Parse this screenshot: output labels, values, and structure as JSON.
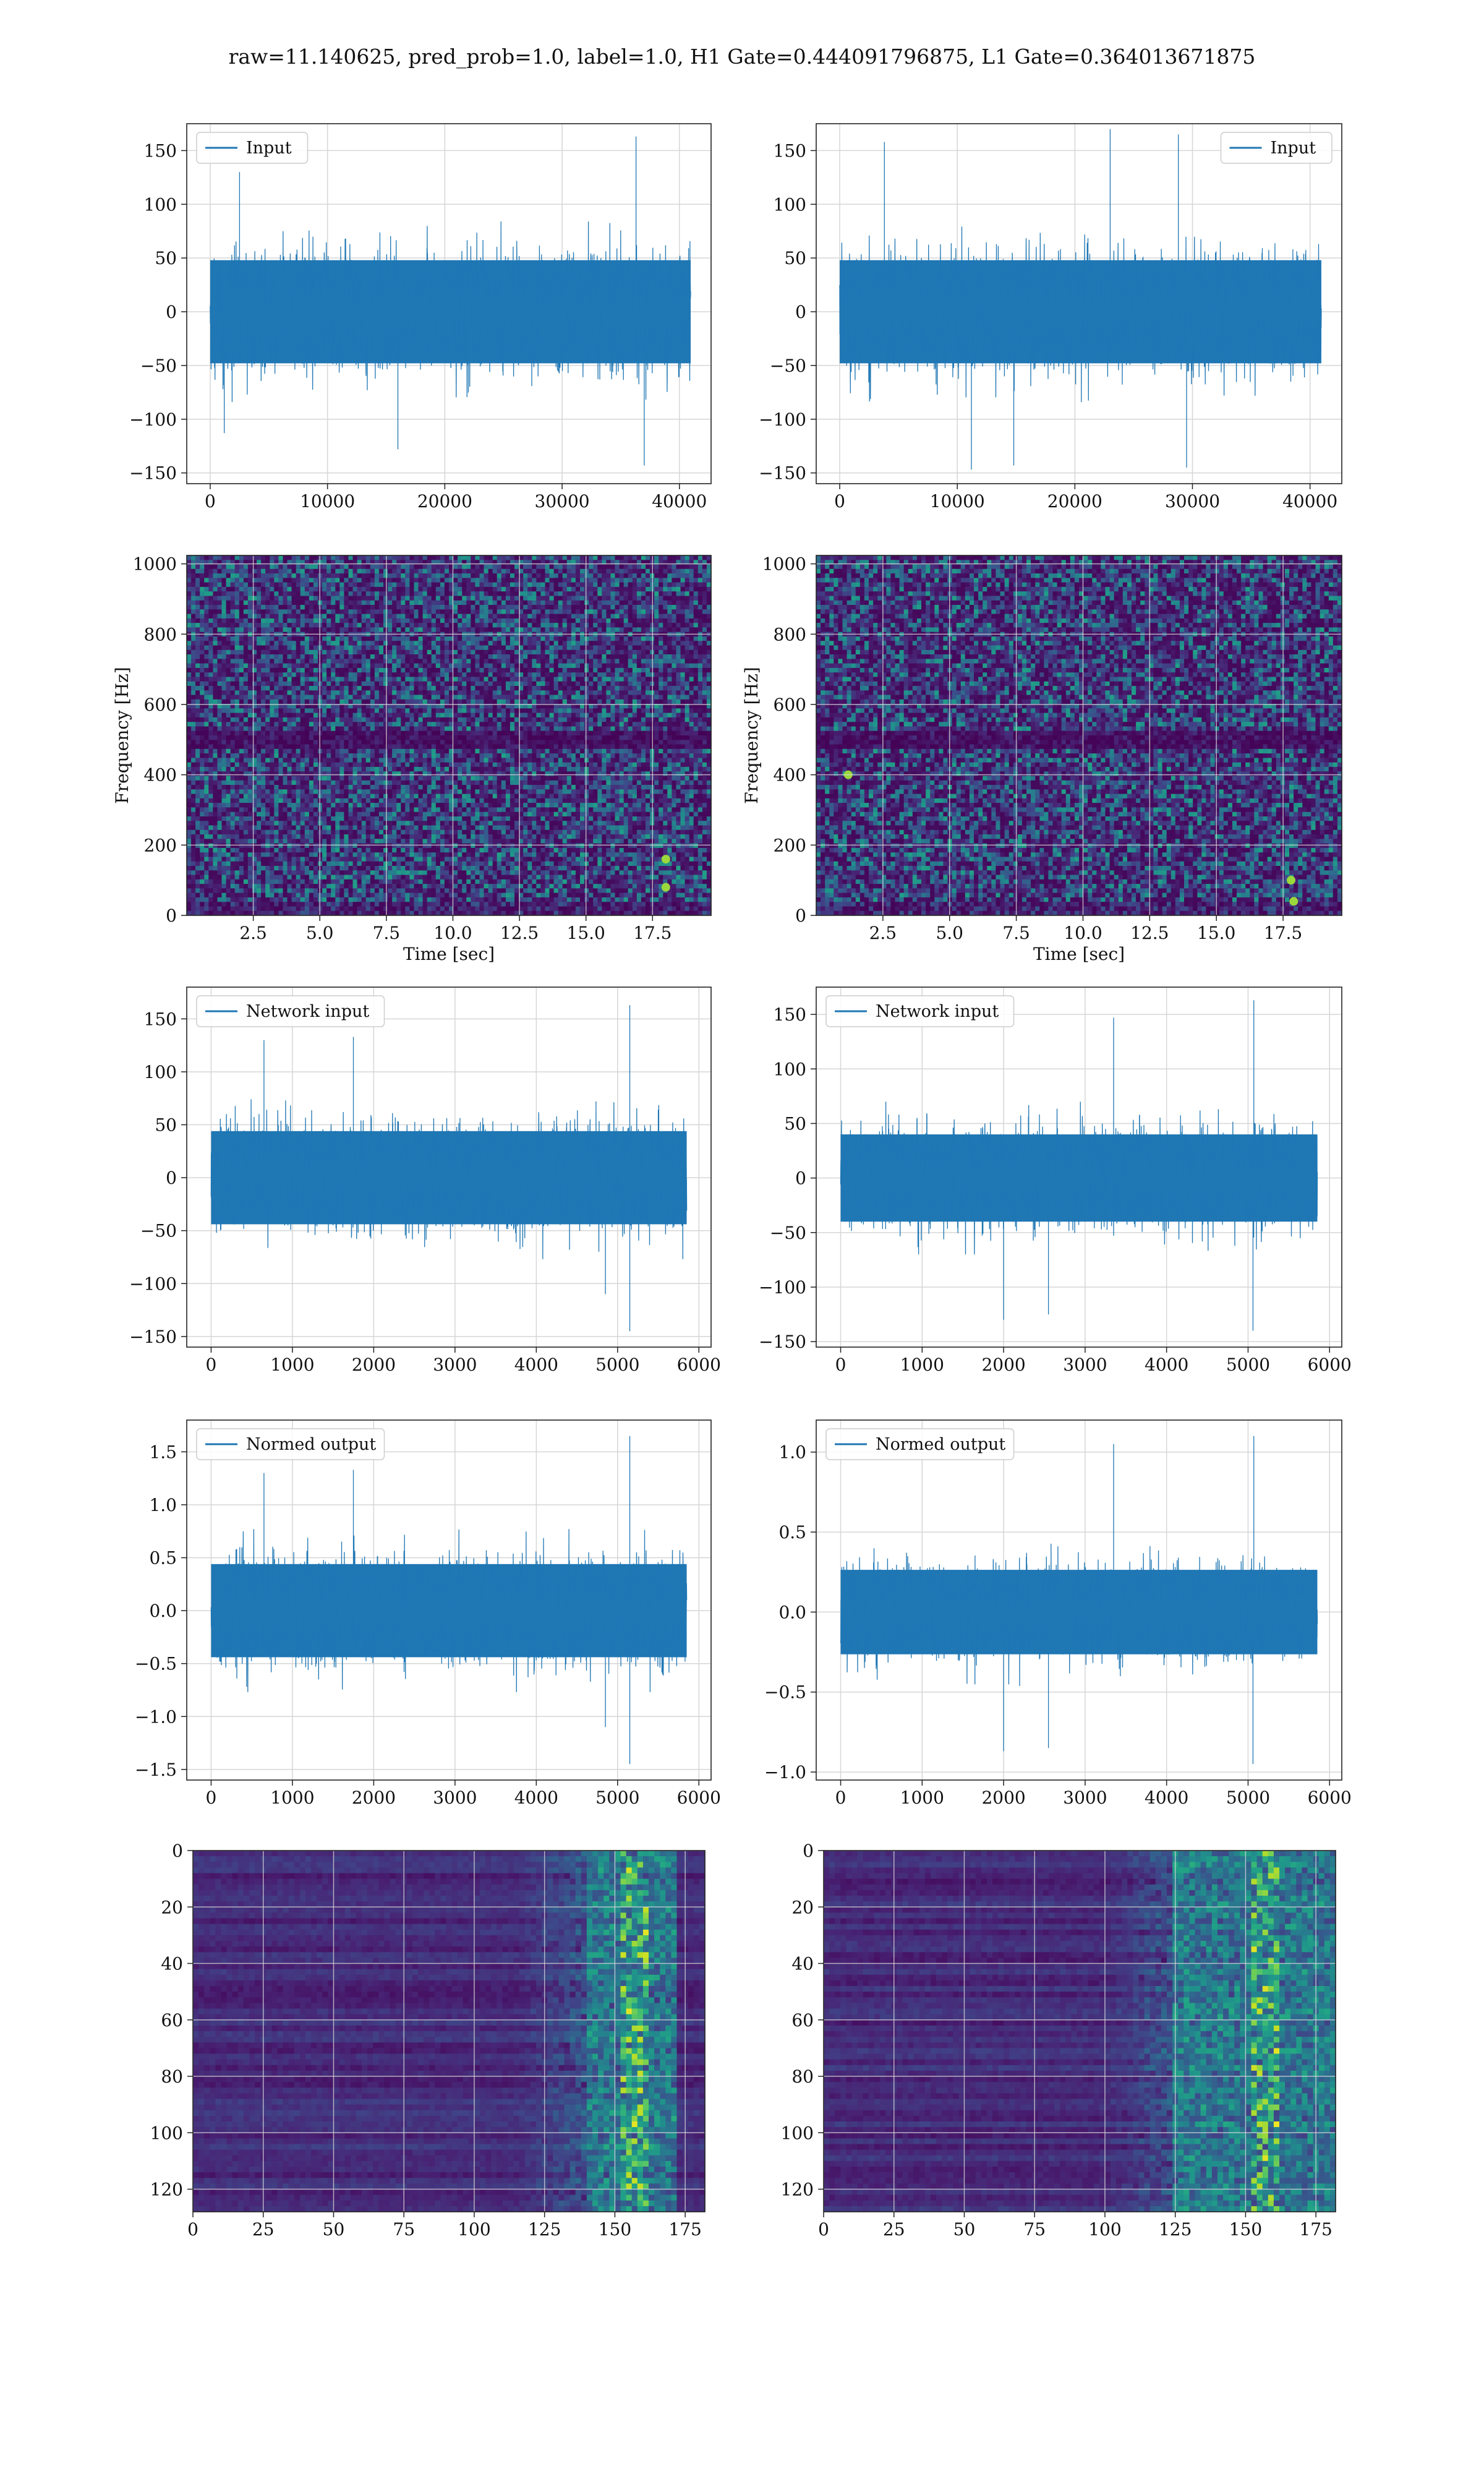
{
  "figure": {
    "title": "raw=11.140625, pred_prob=1.0, label=1.0, H1 Gate=0.444091796875, L1 Gate=0.364013671875"
  },
  "chart_data": [
    {
      "id": "input-h1",
      "type": "line",
      "legend": "Input",
      "legend_loc": "upper-left",
      "grid": true,
      "xlim": [
        -2000,
        42700
      ],
      "ylim": [
        -160,
        175
      ],
      "xticks": [
        0,
        10000,
        20000,
        30000,
        40000
      ],
      "yticks": [
        -150,
        -100,
        -50,
        0,
        50,
        100,
        150
      ],
      "x_range": [
        0,
        40960
      ],
      "noise_amplitude": 60,
      "color": "#1f77b4",
      "peaks": [
        {
          "x": 2500,
          "y": 130
        },
        {
          "x": 36300,
          "y": 163
        },
        {
          "x": 37000,
          "y": -143
        },
        {
          "x": 16000,
          "y": -128
        },
        {
          "x": 1200,
          "y": -113
        }
      ]
    },
    {
      "id": "input-l1",
      "type": "line",
      "legend": "Input",
      "legend_loc": "upper-right",
      "grid": true,
      "xlim": [
        -2000,
        42700
      ],
      "ylim": [
        -160,
        175
      ],
      "xticks": [
        0,
        10000,
        20000,
        30000,
        40000
      ],
      "yticks": [
        -150,
        -100,
        -50,
        0,
        50,
        100,
        150
      ],
      "x_range": [
        0,
        40960
      ],
      "noise_amplitude": 60,
      "color": "#1f77b4",
      "peaks": [
        {
          "x": 23000,
          "y": 170
        },
        {
          "x": 28800,
          "y": 165
        },
        {
          "x": 3800,
          "y": 158
        },
        {
          "x": 11200,
          "y": -147
        },
        {
          "x": 14800,
          "y": -143
        },
        {
          "x": 29500,
          "y": -145
        }
      ]
    },
    {
      "id": "spectrogram-h1",
      "type": "heatmap",
      "colormap": "viridis",
      "grid": true,
      "xlabel": "Time [sec]",
      "ylabel": "Frequency [Hz]",
      "xlim": [
        0,
        19.7
      ],
      "ylim": [
        0,
        1024
      ],
      "xticks": [
        2.5,
        5.0,
        7.5,
        10.0,
        12.5,
        15.0,
        17.5
      ],
      "xtick_labels": [
        "2.5",
        "5.0",
        "7.5",
        "10.0",
        "12.5",
        "15.0",
        "17.5"
      ],
      "yticks": [
        0,
        200,
        400,
        600,
        800,
        1000
      ],
      "dark_band_hz": [
        480,
        520
      ],
      "hotspots": [
        {
          "t": 18.0,
          "f": 160
        },
        {
          "t": 18.0,
          "f": 80
        }
      ]
    },
    {
      "id": "spectrogram-l1",
      "type": "heatmap",
      "colormap": "viridis",
      "grid": true,
      "xlabel": "Time [sec]",
      "ylabel": "Frequency [Hz]",
      "xlim": [
        0,
        19.7
      ],
      "ylim": [
        0,
        1024
      ],
      "xticks": [
        2.5,
        5.0,
        7.5,
        10.0,
        12.5,
        15.0,
        17.5
      ],
      "xtick_labels": [
        "2.5",
        "5.0",
        "7.5",
        "10.0",
        "12.5",
        "15.0",
        "17.5"
      ],
      "yticks": [
        0,
        200,
        400,
        600,
        800,
        1000
      ],
      "dark_band_hz": [
        480,
        520
      ],
      "hotspots": [
        {
          "t": 17.8,
          "f": 100
        },
        {
          "t": 17.9,
          "f": 40
        },
        {
          "t": 1.2,
          "f": 400
        }
      ]
    },
    {
      "id": "network-input-h1",
      "type": "line",
      "legend": "Network input",
      "legend_loc": "upper-left",
      "grid": true,
      "xlim": [
        -300,
        6150
      ],
      "ylim": [
        -160,
        180
      ],
      "xticks": [
        0,
        1000,
        2000,
        3000,
        4000,
        5000,
        6000
      ],
      "yticks": [
        -150,
        -100,
        -50,
        0,
        50,
        100,
        150
      ],
      "x_range": [
        0,
        5850
      ],
      "noise_amplitude": 55,
      "color": "#1f77b4",
      "peaks": [
        {
          "x": 5150,
          "y": 163
        },
        {
          "x": 1750,
          "y": 133
        },
        {
          "x": 650,
          "y": 130
        },
        {
          "x": 5150,
          "y": -145
        },
        {
          "x": 4850,
          "y": -110
        }
      ]
    },
    {
      "id": "network-input-l1",
      "type": "line",
      "legend": "Network input",
      "legend_loc": "upper-left",
      "grid": true,
      "xlim": [
        -300,
        6150
      ],
      "ylim": [
        -155,
        175
      ],
      "xticks": [
        0,
        1000,
        2000,
        3000,
        4000,
        5000,
        6000
      ],
      "yticks": [
        -150,
        -100,
        -50,
        0,
        50,
        100,
        150
      ],
      "x_range": [
        0,
        5850
      ],
      "noise_amplitude": 50,
      "color": "#1f77b4",
      "peaks": [
        {
          "x": 3350,
          "y": 147
        },
        {
          "x": 5070,
          "y": 163
        },
        {
          "x": 2000,
          "y": -130
        },
        {
          "x": 5060,
          "y": -140
        },
        {
          "x": 2550,
          "y": -125
        }
      ]
    },
    {
      "id": "normed-output-h1",
      "type": "line",
      "legend": "Normed output",
      "legend_loc": "upper-left",
      "grid": true,
      "xlim": [
        -300,
        6150
      ],
      "ylim": [
        -1.6,
        1.8
      ],
      "xticks": [
        0,
        1000,
        2000,
        3000,
        4000,
        5000,
        6000
      ],
      "yticks": [
        -1.5,
        -1.0,
        -0.5,
        0.0,
        0.5,
        1.0,
        1.5
      ],
      "ytick_labels": [
        "−1.5",
        "−1.0",
        "−0.5",
        "0.0",
        "0.5",
        "1.0",
        "1.5"
      ],
      "x_range": [
        0,
        5850
      ],
      "noise_amplitude": 0.55,
      "color": "#1f77b4",
      "peaks": [
        {
          "x": 5150,
          "y": 1.65
        },
        {
          "x": 1750,
          "y": 1.33
        },
        {
          "x": 650,
          "y": 1.3
        },
        {
          "x": 5150,
          "y": -1.45
        },
        {
          "x": 4850,
          "y": -1.1
        }
      ]
    },
    {
      "id": "normed-output-l1",
      "type": "line",
      "legend": "Normed output",
      "legend_loc": "upper-left",
      "grid": true,
      "xlim": [
        -300,
        6150
      ],
      "ylim": [
        -1.05,
        1.2
      ],
      "xticks": [
        0,
        1000,
        2000,
        3000,
        4000,
        5000,
        6000
      ],
      "yticks": [
        -1.0,
        -0.5,
        0.0,
        0.5,
        1.0
      ],
      "ytick_labels": [
        "−1.0",
        "−0.5",
        "0.0",
        "0.5",
        "1.0"
      ],
      "x_range": [
        0,
        5850
      ],
      "noise_amplitude": 0.33,
      "color": "#1f77b4",
      "peaks": [
        {
          "x": 3350,
          "y": 1.05
        },
        {
          "x": 5070,
          "y": 1.1
        },
        {
          "x": 2000,
          "y": -0.87
        },
        {
          "x": 5060,
          "y": -0.95
        },
        {
          "x": 2550,
          "y": -0.85
        }
      ]
    },
    {
      "id": "activation-map-h1",
      "type": "heatmap",
      "colormap": "viridis",
      "grid": true,
      "y_inverted": true,
      "xlim": [
        0,
        182
      ],
      "ylim": [
        0,
        128
      ],
      "xticks": [
        0,
        25,
        50,
        75,
        100,
        125,
        150,
        175
      ],
      "yticks": [
        0,
        20,
        40,
        60,
        80,
        100,
        120
      ],
      "bright_column_range": [
        140,
        172
      ]
    },
    {
      "id": "activation-map-l1",
      "type": "heatmap",
      "colormap": "viridis",
      "grid": true,
      "y_inverted": true,
      "xlim": [
        0,
        182
      ],
      "ylim": [
        0,
        128
      ],
      "xticks": [
        0,
        25,
        50,
        75,
        100,
        125,
        150,
        175
      ],
      "yticks": [
        0,
        20,
        40,
        60,
        80,
        100,
        120
      ],
      "bright_column_range": [
        125,
        182
      ]
    }
  ]
}
